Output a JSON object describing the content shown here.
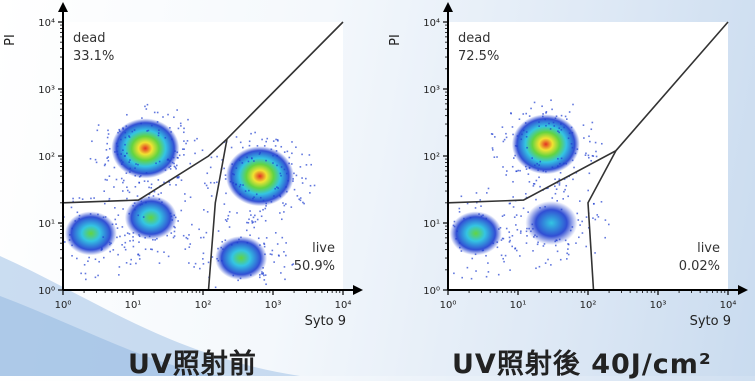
{
  "chart_data": [
    {
      "type": "scatter",
      "title": "",
      "xlabel": "Syto 9",
      "ylabel": "PI",
      "xscale": "log",
      "yscale": "log",
      "xlim": [
        1,
        10000
      ],
      "ylim": [
        1,
        10000
      ],
      "x_ticks": [
        "10⁰",
        "10¹",
        "10²",
        "10³",
        "10⁴"
      ],
      "y_ticks": [
        "10⁰",
        "10¹",
        "10²",
        "10³",
        "10⁴"
      ],
      "gates": [
        {
          "name": "dead",
          "percent": "33.1%",
          "position": "top-left"
        },
        {
          "name": "live",
          "percent": "50.9%",
          "position": "bottom-right"
        }
      ],
      "clusters": [
        {
          "x": 2.5,
          "y": 7,
          "density": "medium"
        },
        {
          "x": 15,
          "y": 130,
          "density": "high"
        },
        {
          "x": 18,
          "y": 12,
          "density": "medium"
        },
        {
          "x": 650,
          "y": 50,
          "density": "high"
        },
        {
          "x": 350,
          "y": 3,
          "density": "medium"
        }
      ],
      "caption": "UV照射前"
    },
    {
      "type": "scatter",
      "title": "",
      "xlabel": "Syto 9",
      "ylabel": "PI",
      "xscale": "log",
      "yscale": "log",
      "xlim": [
        1,
        10000
      ],
      "ylim": [
        1,
        10000
      ],
      "x_ticks": [
        "10⁰",
        "10¹",
        "10²",
        "10³",
        "10⁴"
      ],
      "y_ticks": [
        "10⁰",
        "10¹",
        "10²",
        "10³",
        "10⁴"
      ],
      "gates": [
        {
          "name": "dead",
          "percent": "72.5%",
          "position": "top-left"
        },
        {
          "name": "live",
          "percent": "0.02%",
          "position": "bottom-right"
        }
      ],
      "clusters": [
        {
          "x": 2.5,
          "y": 7,
          "density": "medium"
        },
        {
          "x": 25,
          "y": 150,
          "density": "high"
        },
        {
          "x": 30,
          "y": 10,
          "density": "low"
        }
      ],
      "caption": "UV照射後 40J/cm²"
    }
  ],
  "palette": {
    "low": "#1f3fd0",
    "mid": "#22c0e0",
    "midhigh": "#55d030",
    "high": "#f0e020",
    "peak": "#e02010"
  }
}
